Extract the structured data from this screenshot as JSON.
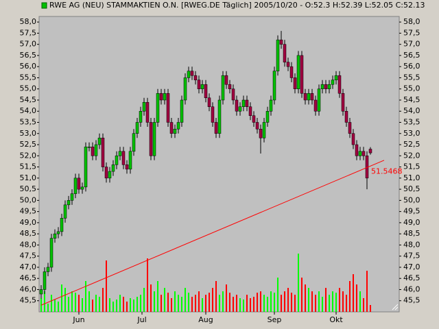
{
  "chart_data": {
    "type": "candlestick",
    "title": "RWE AG (NEU) STAMMAKTIEN O.N. [RWEG.DE  Täglich] 2005/10/20 - O:52.3 H:52.39 L:52.05 C:52.13",
    "ylim": [
      45.0,
      58.25
    ],
    "yticks": [
      {
        "value": 45.5,
        "label": "45,5"
      },
      {
        "value": 46.0,
        "label": "46,0"
      },
      {
        "value": 46.5,
        "label": "46,5"
      },
      {
        "value": 47.0,
        "label": "47,0"
      },
      {
        "value": 47.5,
        "label": "47,5"
      },
      {
        "value": 48.0,
        "label": "48,0"
      },
      {
        "value": 48.5,
        "label": "48,5"
      },
      {
        "value": 49.0,
        "label": "49,0"
      },
      {
        "value": 49.5,
        "label": "49,5"
      },
      {
        "value": 50.0,
        "label": "50,0"
      },
      {
        "value": 50.5,
        "label": "50,5"
      },
      {
        "value": 51.0,
        "label": "51,0"
      },
      {
        "value": 51.5,
        "label": "51,5"
      },
      {
        "value": 52.0,
        "label": "52,0"
      },
      {
        "value": 52.5,
        "label": "52,5"
      },
      {
        "value": 53.0,
        "label": "53,0"
      },
      {
        "value": 53.5,
        "label": "53,5"
      },
      {
        "value": 54.0,
        "label": "54,0"
      },
      {
        "value": 54.5,
        "label": "54,5"
      },
      {
        "value": 55.0,
        "label": "55,0"
      },
      {
        "value": 55.5,
        "label": "55,5"
      },
      {
        "value": 56.0,
        "label": "56,0"
      },
      {
        "value": 56.5,
        "label": "56,5"
      },
      {
        "value": 57.0,
        "label": "57,0"
      },
      {
        "value": 57.5,
        "label": "57,5"
      },
      {
        "value": 58.0,
        "label": "58,0"
      }
    ],
    "xlim": [
      -0.6,
      104.4
    ],
    "xticks": [
      {
        "value": 11,
        "label": "Jun"
      },
      {
        "value": 29.4,
        "label": "Jul"
      },
      {
        "value": 48,
        "label": "Aug"
      },
      {
        "value": 68,
        "label": "Sep"
      },
      {
        "value": 86,
        "label": "Okt"
      }
    ],
    "up_color": "#00c000",
    "down_color": "#a00040",
    "volume_up_color": "#00ff00",
    "volume_down_color": "#ff0000",
    "open": [
      45.8,
      46.0,
      46.8,
      47.0,
      48.3,
      48.5,
      48.6,
      49.2,
      49.8,
      50.0,
      50.3,
      51.0,
      50.5,
      50.6,
      52.4,
      52.4,
      52.0,
      52.5,
      52.8,
      51.5,
      51.0,
      51.3,
      51.6,
      52.0,
      52.2,
      51.6,
      51.4,
      52.2,
      53.0,
      53.5,
      54.0,
      54.4,
      53.5,
      52.0,
      53.5,
      54.8,
      54.5,
      54.8,
      53.5,
      53.0,
      53.2,
      53.5,
      54.5,
      55.5,
      55.8,
      55.6,
      55.4,
      55.0,
      55.2,
      54.6,
      54.2,
      53.5,
      53.0,
      54.5,
      55.6,
      55.2,
      55.0,
      54.5,
      54.0,
      54.2,
      54.5,
      54.2,
      53.8,
      53.5,
      53.2,
      52.8,
      53.5,
      54.0,
      54.5,
      55.8,
      57.2,
      57.0,
      56.2,
      56.0,
      55.5,
      55.0,
      56.5,
      54.8,
      54.5,
      54.8,
      54.5,
      54.0,
      55.0,
      55.2,
      55.0,
      55.2,
      55.4,
      55.6,
      54.8,
      54.0,
      53.5,
      53.0,
      52.5,
      52.0,
      52.2,
      52.0,
      52.3
    ],
    "high": [
      46.2,
      47.0,
      47.2,
      48.5,
      48.7,
      48.8,
      49.4,
      50.0,
      50.2,
      50.5,
      51.2,
      51.2,
      50.8,
      52.6,
      52.6,
      52.6,
      52.7,
      53.0,
      53.0,
      51.7,
      51.5,
      51.8,
      52.2,
      52.4,
      52.4,
      51.8,
      52.4,
      53.2,
      53.7,
      54.2,
      54.6,
      54.6,
      53.7,
      53.7,
      55.0,
      55.0,
      55.0,
      55.0,
      53.7,
      53.4,
      53.7,
      54.7,
      55.7,
      56.0,
      56.0,
      55.8,
      55.6,
      55.4,
      55.4,
      54.8,
      54.4,
      53.7,
      54.7,
      55.8,
      55.8,
      55.4,
      55.2,
      54.7,
      54.4,
      54.7,
      54.7,
      54.4,
      54.0,
      53.7,
      53.4,
      53.7,
      54.2,
      54.7,
      56.0,
      57.4,
      57.6,
      57.2,
      56.4,
      56.2,
      55.7,
      56.7,
      56.7,
      55.0,
      55.0,
      55.0,
      54.7,
      55.2,
      55.4,
      55.4,
      55.4,
      55.6,
      55.8,
      55.8,
      55.0,
      54.2,
      53.7,
      53.2,
      52.7,
      52.4,
      52.4,
      52.2,
      52.39
    ],
    "low": [
      45.6,
      45.8,
      46.6,
      46.8,
      48.1,
      48.3,
      48.4,
      49.0,
      49.6,
      49.8,
      50.1,
      50.3,
      50.3,
      50.4,
      52.2,
      51.8,
      51.8,
      52.3,
      51.3,
      50.8,
      50.8,
      51.1,
      51.4,
      51.8,
      51.4,
      51.2,
      51.2,
      52.0,
      52.8,
      53.3,
      53.8,
      53.3,
      51.8,
      51.8,
      53.3,
      54.3,
      54.3,
      53.3,
      52.8,
      52.8,
      53.0,
      53.3,
      54.3,
      55.3,
      55.4,
      55.2,
      54.8,
      54.8,
      54.4,
      54.0,
      53.3,
      52.8,
      52.8,
      54.3,
      55.0,
      54.8,
      54.3,
      53.8,
      53.8,
      54.0,
      54.0,
      53.6,
      53.3,
      53.0,
      52.1,
      52.6,
      53.3,
      53.8,
      54.3,
      55.6,
      56.8,
      56.0,
      55.8,
      55.3,
      54.8,
      54.8,
      54.6,
      54.3,
      54.3,
      54.3,
      53.8,
      53.8,
      54.8,
      54.8,
      54.8,
      55.0,
      55.2,
      54.6,
      53.8,
      53.3,
      52.8,
      52.3,
      51.8,
      51.8,
      51.8,
      50.5,
      52.05
    ],
    "close": [
      46.0,
      46.8,
      47.0,
      48.3,
      48.5,
      48.6,
      49.2,
      49.8,
      50.0,
      50.3,
      51.0,
      50.5,
      50.6,
      52.4,
      52.4,
      52.0,
      52.5,
      52.8,
      51.5,
      51.0,
      51.3,
      51.6,
      52.0,
      52.2,
      51.6,
      51.4,
      52.2,
      53.0,
      53.5,
      54.0,
      54.4,
      53.5,
      52.0,
      53.5,
      54.8,
      54.5,
      54.8,
      53.5,
      53.0,
      53.2,
      53.5,
      54.5,
      55.5,
      55.8,
      55.6,
      55.4,
      55.0,
      55.2,
      54.6,
      54.2,
      53.5,
      53.0,
      54.5,
      55.6,
      55.2,
      55.0,
      54.5,
      54.0,
      54.2,
      54.5,
      54.2,
      53.8,
      53.5,
      53.2,
      52.8,
      53.5,
      54.0,
      54.5,
      55.8,
      57.2,
      57.0,
      56.2,
      56.0,
      55.5,
      55.0,
      56.5,
      54.8,
      54.5,
      54.8,
      54.5,
      54.0,
      55.0,
      55.2,
      55.0,
      55.2,
      55.4,
      55.6,
      54.8,
      54.0,
      53.5,
      53.0,
      52.5,
      52.0,
      52.2,
      52.0,
      51.0,
      52.13
    ],
    "vlim": [
      0,
      100
    ],
    "volume": [
      20,
      30,
      12,
      25,
      18,
      15,
      40,
      35,
      22,
      30,
      28,
      25,
      20,
      45,
      30,
      18,
      25,
      22,
      35,
      75,
      20,
      15,
      18,
      25,
      22,
      15,
      20,
      18,
      22,
      25,
      35,
      78,
      40,
      30,
      45,
      25,
      35,
      28,
      20,
      30,
      25,
      22,
      35,
      28,
      22,
      25,
      30,
      20,
      25,
      28,
      35,
      45,
      25,
      30,
      40,
      28,
      22,
      25,
      20,
      18,
      25,
      20,
      22,
      28,
      30,
      25,
      22,
      30,
      28,
      50,
      25,
      30,
      35,
      28,
      25,
      85,
      50,
      40,
      35,
      30,
      25,
      30,
      22,
      35,
      25,
      30,
      28,
      35,
      30,
      25,
      45,
      55,
      40,
      30,
      20,
      60,
      10
    ],
    "trendline": {
      "x": [
        0,
        100
      ],
      "y": [
        45.3,
        51.8
      ],
      "color": "#ff0000",
      "label": "51.5468"
    }
  }
}
